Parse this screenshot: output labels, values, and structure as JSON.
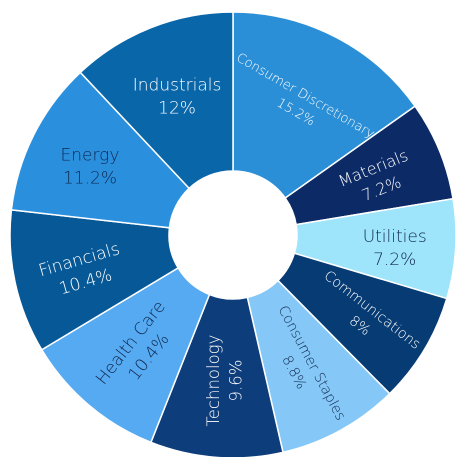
{
  "chart_data": {
    "type": "pie",
    "donut": true,
    "title": "",
    "slices": [
      {
        "label": "Consumer Discretionary",
        "value": 15.2,
        "value_label": "15.2%",
        "color": "#2a8fd6",
        "text_color": "#ffffff"
      },
      {
        "label": "Materials",
        "value": 7.2,
        "value_label": "7.2%",
        "color": "#0b2a66",
        "text_color": "#ffffff"
      },
      {
        "label": "Utilities",
        "value": 7.2,
        "value_label": "7.2%",
        "color": "#9ee4fb",
        "text_color": "#10294f"
      },
      {
        "label": "Communications",
        "value": 8,
        "value_label": "8%",
        "color": "#063b73",
        "text_color": "#ffffff"
      },
      {
        "label": "Consumer Staples",
        "value": 8.8,
        "value_label": "8.8%",
        "color": "#85c8f8",
        "text_color": "#10294f"
      },
      {
        "label": "Technology",
        "value": 9.6,
        "value_label": "9.6%",
        "color": "#0d3d7a",
        "text_color": "#ffffff"
      },
      {
        "label": "Health Care",
        "value": 10.4,
        "value_label": "10.4%",
        "color": "#56aaf1",
        "text_color": "#10294f"
      },
      {
        "label": "Financials",
        "value": 10.4,
        "value_label": "10.4%",
        "color": "#075896",
        "text_color": "#ffffff"
      },
      {
        "label": "Energy",
        "value": 11.2,
        "value_label": "11.2%",
        "color": "#2a90de",
        "text_color": "#10294f"
      },
      {
        "label": "Industrials",
        "value": 12,
        "value_label": "12%",
        "color": "#0966a9",
        "text_color": "#ffffff"
      }
    ]
  }
}
